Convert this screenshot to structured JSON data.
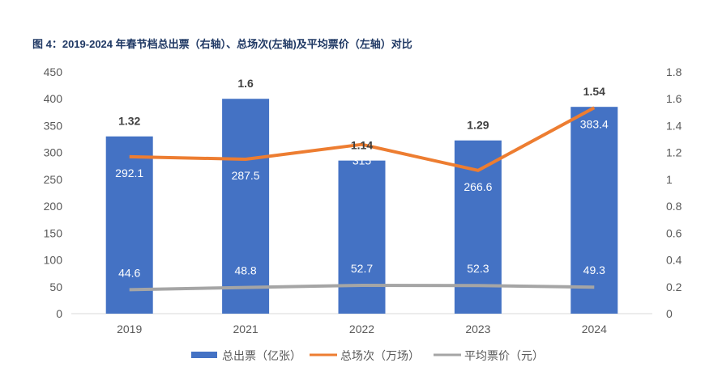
{
  "chart_data": {
    "type": "bar",
    "title": "图 4：2019-2024 年春节档总出票（右轴）、总场次(左轴)及平均票价（左轴）对比",
    "categories": [
      "2019",
      "2021",
      "2022",
      "2023",
      "2024"
    ],
    "left_axis": {
      "ylim": [
        0,
        450
      ],
      "ticks": [
        0,
        50,
        100,
        150,
        200,
        250,
        300,
        350,
        400,
        450
      ]
    },
    "right_axis": {
      "ylim": [
        0,
        1.8
      ],
      "ticks": [
        "0",
        "0.2",
        "0.4",
        "0.6",
        "0.8",
        "1",
        "1.2",
        "1.4",
        "1.6",
        "1.8"
      ]
    },
    "series": [
      {
        "name": "总出票（亿张）",
        "type": "bar",
        "axis": "right",
        "color": "#4472c4",
        "values": [
          1.32,
          1.6,
          1.14,
          1.29,
          1.54
        ]
      },
      {
        "name": "总场次（万场）",
        "type": "line",
        "axis": "left",
        "color": "#ed7d31",
        "values": [
          292.1,
          287.5,
          315,
          266.6,
          383.4
        ]
      },
      {
        "name": "平均票价（元）",
        "type": "line",
        "axis": "left",
        "color": "#a5a5a5",
        "values": [
          44.6,
          48.8,
          52.7,
          52.3,
          49.3
        ]
      }
    ],
    "legend": "bottom",
    "grid": false
  }
}
